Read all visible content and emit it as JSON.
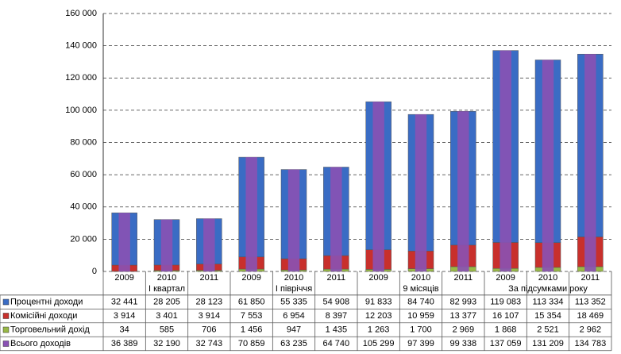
{
  "chart_data": {
    "type": "stacked-bar-table",
    "categories": [
      "2009",
      "2010",
      "2011",
      "2009",
      "2010",
      "2011",
      "2009",
      "2010",
      "2011",
      "2009",
      "2010",
      "2011"
    ],
    "groups": [
      "I квартал",
      "I півріччя",
      "9 місяців",
      "За підсумками року"
    ],
    "series": [
      {
        "name": "Процентні доходи",
        "color": "#3a6cc4",
        "stacked": true,
        "values": [
          32441,
          28205,
          28123,
          61850,
          55335,
          54908,
          91833,
          84740,
          82993,
          119083,
          113334,
          113352
        ],
        "value_labels": [
          "32 441",
          "28 205",
          "28 123",
          "61 850",
          "55 335",
          "54 908",
          "91 833",
          "84 740",
          "82 993",
          "119 083",
          "113 334",
          "113 352"
        ]
      },
      {
        "name": "Комісійні доходи",
        "color": "#c8302c",
        "stacked": true,
        "values": [
          3914,
          3401,
          3914,
          7553,
          6954,
          8397,
          12203,
          10959,
          13377,
          16107,
          15354,
          18469
        ],
        "value_labels": [
          "3 914",
          "3 401",
          "3 914",
          "7 553",
          "6 954",
          "8 397",
          "12 203",
          "10 959",
          "13 377",
          "16 107",
          "15 354",
          "18 469"
        ]
      },
      {
        "name": "Торговельний дохід",
        "color": "#98b846",
        "stacked": true,
        "values": [
          34,
          585,
          706,
          1456,
          947,
          1435,
          1263,
          1700,
          2969,
          1868,
          2521,
          2962
        ],
        "value_labels": [
          "34",
          "585",
          "706",
          "1 456",
          "947",
          "1 435",
          "1 263",
          "1 700",
          "2 969",
          "1 868",
          "2 521",
          "2 962"
        ]
      },
      {
        "name": "Всього доходів",
        "color": "#8a52b4",
        "stacked": false,
        "values": [
          36389,
          32190,
          32743,
          70859,
          63235,
          64740,
          105299,
          97399,
          99338,
          137059,
          131209,
          134783
        ],
        "value_labels": [
          "36 389",
          "32 190",
          "32 743",
          "70 859",
          "63 235",
          "64 740",
          "105 299",
          "97 399",
          "99 338",
          "137 059",
          "131 209",
          "134 783"
        ]
      }
    ],
    "ylim": [
      0,
      160000
    ],
    "yticks": [
      0,
      {
        "value": 20000,
        "label": "20 000"
      },
      {
        "value": 40000,
        "label": "40 000"
      },
      {
        "value": 60000,
        "label": "60 000"
      },
      {
        "value": 80000,
        "label": "80 000"
      },
      {
        "value": 100000,
        "label": "100 000"
      },
      {
        "value": 120000,
        "label": "120 000"
      },
      {
        "value": 140000,
        "label": "140 000"
      },
      {
        "value": 160000,
        "label": "160 000"
      }
    ],
    "grid": true
  }
}
